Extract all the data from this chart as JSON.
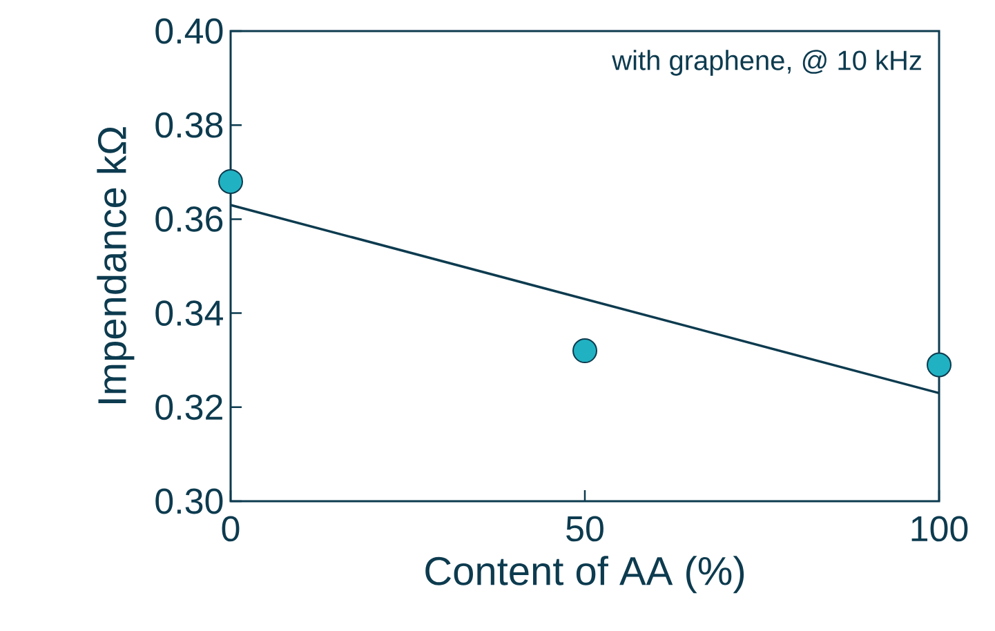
{
  "chart_data": {
    "type": "scatter",
    "xlabel": "Content of AA (%)",
    "ylabel": "Impendance kΩ",
    "annotations": [
      "with graphene, @ 10 kHz"
    ],
    "xlim": [
      0,
      100
    ],
    "xticks": [
      0,
      50,
      100
    ],
    "ylim": [
      0.3,
      0.4
    ],
    "yticks": [
      {
        "value": 0.3,
        "label": "0.30"
      },
      {
        "value": 0.32,
        "label": "0.32"
      },
      {
        "value": 0.34,
        "label": "0.34"
      },
      {
        "value": 0.36,
        "label": "0.36"
      },
      {
        "value": 0.38,
        "label": "0.38"
      },
      {
        "value": 0.4,
        "label": "0.40"
      }
    ],
    "marker": "circle",
    "series": [
      {
        "color": "#20b2c2",
        "x": [
          0,
          50,
          100
        ],
        "values": [
          0.368,
          0.332,
          0.329
        ]
      },
      {
        "type": "line",
        "marker": "none",
        "color": "#0d3b4f",
        "line_style": "solid",
        "x": [
          0,
          100
        ],
        "values": [
          0.363,
          0.323
        ]
      }
    ]
  }
}
